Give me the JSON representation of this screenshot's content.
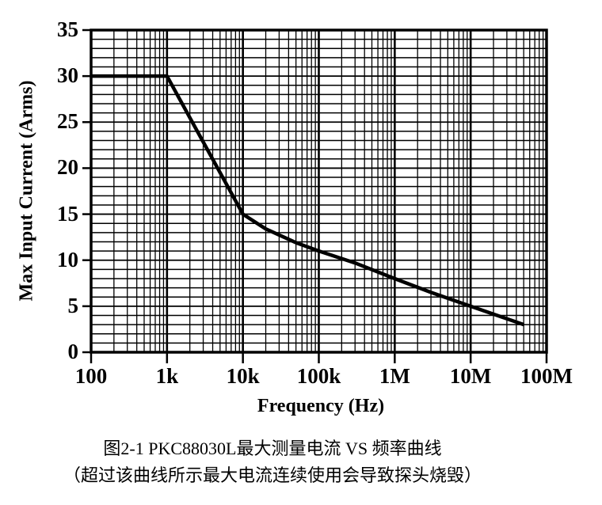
{
  "figure": {
    "caption_line1": "图2-1 PKC88030L最大测量电流 VS 频率曲线",
    "caption_line2": "（超过该曲线所示最大电流连续使用会导致探头烧毁）"
  },
  "chart_data": {
    "type": "line",
    "title": "",
    "xlabel": "Frequency (Hz)",
    "ylabel": "Max Input Current (Arms)",
    "x_scale": "log10",
    "x_range": [
      100,
      100000000
    ],
    "y_range": [
      0,
      35
    ],
    "y_major_step": 5,
    "y_minor_step": 1,
    "grid": {
      "on": true,
      "x_minor": "multiples 2-9 in every decade",
      "y_minor_every": 1,
      "color": "#000000"
    },
    "legend": "none",
    "x_ticks": [
      {
        "value": 100,
        "label": "100"
      },
      {
        "value": 1000,
        "label": "1k"
      },
      {
        "value": 10000,
        "label": "10k"
      },
      {
        "value": 100000,
        "label": "100k"
      },
      {
        "value": 1000000,
        "label": "1M"
      },
      {
        "value": 10000000,
        "label": "10M"
      },
      {
        "value": 100000000,
        "label": "100M"
      }
    ],
    "y_ticks": [
      {
        "value": 0,
        "label": "0"
      },
      {
        "value": 5,
        "label": "5"
      },
      {
        "value": 10,
        "label": "10"
      },
      {
        "value": 15,
        "label": "15"
      },
      {
        "value": 20,
        "label": "20"
      },
      {
        "value": 25,
        "label": "25"
      },
      {
        "value": 30,
        "label": "30"
      },
      {
        "value": 35,
        "label": "35"
      }
    ],
    "series": [
      {
        "name": "PKC88030L max measurable current vs frequency",
        "color": "#000000",
        "points": [
          {
            "x": 100,
            "y": 30
          },
          {
            "x": 1000,
            "y": 30
          },
          {
            "x": 10000,
            "y": 15
          },
          {
            "x": 20000,
            "y": 13.4
          },
          {
            "x": 50000,
            "y": 11.9
          },
          {
            "x": 100000,
            "y": 11
          },
          {
            "x": 300000,
            "y": 9.7
          },
          {
            "x": 1000000,
            "y": 8
          },
          {
            "x": 3000000,
            "y": 6.5
          },
          {
            "x": 10000000,
            "y": 5
          },
          {
            "x": 50000000,
            "y": 3
          }
        ]
      }
    ]
  },
  "colors": {
    "background": "#ffffff",
    "text": "#000000",
    "grid": "#000000",
    "curve": "#000000"
  }
}
